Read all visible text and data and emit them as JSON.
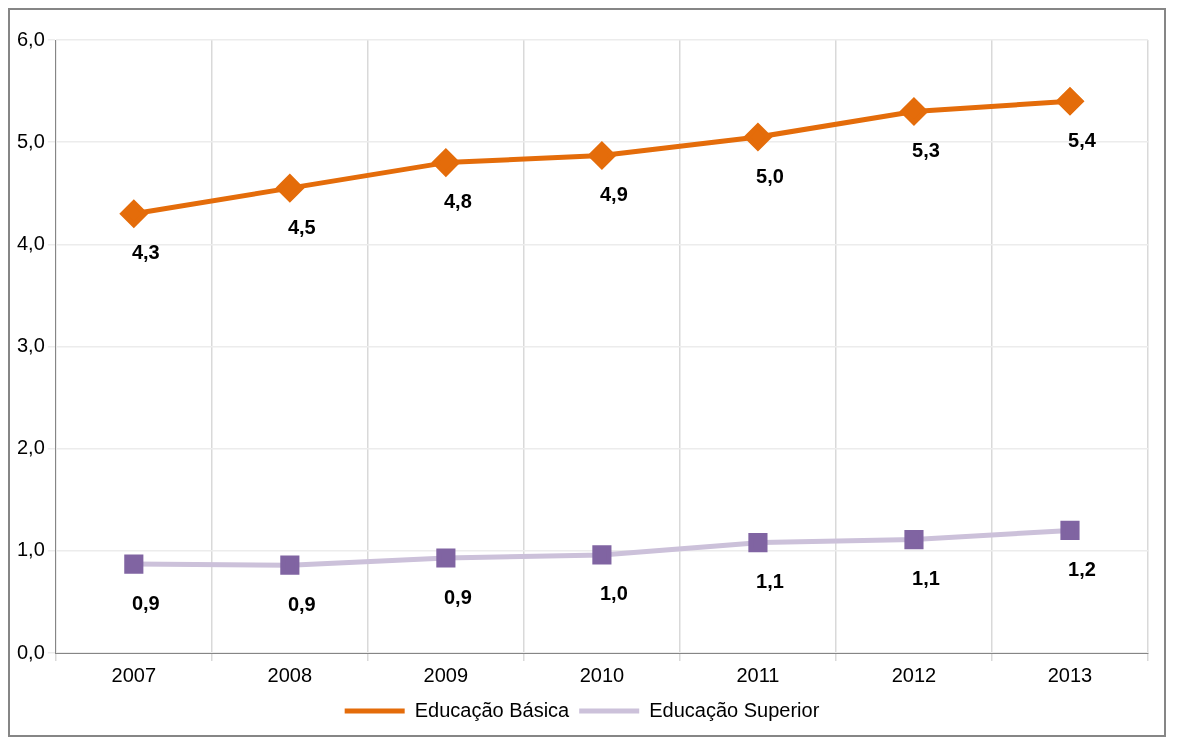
{
  "chart_data": {
    "type": "line",
    "categories": [
      "2007",
      "2008",
      "2009",
      "2010",
      "2011",
      "2012",
      "2013"
    ],
    "series": [
      {
        "name": "Educação Básica",
        "marker": "diamond",
        "color": "#e46c0a",
        "colors": [
          "#e46c0a",
          "#e46c0a",
          "#e46c0a",
          "#e46c0a",
          "#e46c0a",
          "#e46c0a",
          "#e46c0a"
        ],
        "values": [
          4.3,
          4.55,
          4.8,
          4.87,
          5.05,
          5.3,
          5.4
        ],
        "value_labels": [
          "4,3",
          "4,5",
          "4,8",
          "4,9",
          "5,0",
          "5,3",
          "5,4"
        ]
      },
      {
        "name": "Educação Superior",
        "marker": "square",
        "color": "#ccc1da",
        "colors": [
          "#8064a2",
          "#8064a2",
          "#8064a2",
          "#8064a2",
          "#8064a2",
          "#8064a2",
          "#8064a2"
        ],
        "values": [
          0.87,
          0.86,
          0.93,
          0.96,
          1.08,
          1.11,
          1.2
        ],
        "value_labels": [
          "0,9",
          "0,9",
          "0,9",
          "1,0",
          "1,1",
          "1,1",
          "1,2"
        ]
      }
    ],
    "ylim": [
      0,
      6
    ],
    "yticks": [
      {
        "value": 0,
        "label": "0,0"
      },
      {
        "value": 1,
        "label": "1,0"
      },
      {
        "value": 2,
        "label": "2,0"
      },
      {
        "value": 3,
        "label": "3,0"
      },
      {
        "value": 4,
        "label": "4,0"
      },
      {
        "value": 5,
        "label": "5,0"
      },
      {
        "value": 6,
        "label": "6,0"
      }
    ],
    "grid": true,
    "legend": "bottom",
    "line_style": "solid"
  }
}
